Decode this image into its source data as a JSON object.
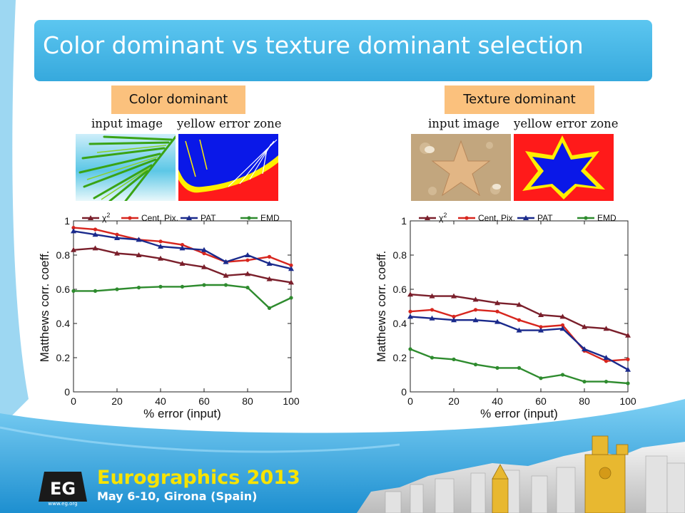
{
  "slide": {
    "title": "Color dominant vs texture dominant selection",
    "left_tag": "Color dominant",
    "right_tag": "Texture dominant",
    "caption_input": "input image",
    "caption_zone": "yellow error zone"
  },
  "footer": {
    "title": "Eurographics 2013",
    "date": "May 6-10, Girona (Spain)",
    "logo_text": "EG",
    "logo_url": "www.eg.org"
  },
  "colors": {
    "chi2": "#7a1f2b",
    "cent": "#d7261e",
    "pat": "#1a2a8c",
    "emd": "#2e8b2e",
    "title_bar": "#3fb2e3",
    "tag": "#fbc17d"
  },
  "chart_data": [
    {
      "type": "line",
      "xlabel": "% error (input)",
      "ylabel": "Matthews corr. coeff.",
      "xlim": [
        0,
        100
      ],
      "ylim": [
        0,
        1
      ],
      "xticks": [
        "0",
        "20",
        "40",
        "60",
        "80",
        "100"
      ],
      "yticks": [
        "0",
        "0.2",
        "0.4",
        "0.6",
        "0.8",
        "1"
      ],
      "legend": "top",
      "x": [
        0,
        10,
        20,
        30,
        40,
        50,
        60,
        70,
        80,
        90,
        100
      ],
      "series": [
        {
          "name": "χ",
          "sup": "2",
          "key": "chi2",
          "marker": "tri",
          "values": [
            0.83,
            0.84,
            0.81,
            0.8,
            0.78,
            0.75,
            0.73,
            0.68,
            0.69,
            0.66,
            0.64
          ]
        },
        {
          "name": "Cent. Pix.",
          "key": "cent",
          "marker": "dot",
          "values": [
            0.96,
            0.95,
            0.92,
            0.89,
            0.88,
            0.86,
            0.81,
            0.76,
            0.77,
            0.79,
            0.74
          ]
        },
        {
          "name": "PAT",
          "key": "pat",
          "marker": "tri",
          "values": [
            0.94,
            0.92,
            0.9,
            0.89,
            0.85,
            0.84,
            0.83,
            0.76,
            0.8,
            0.75,
            0.72
          ]
        },
        {
          "name": "EMD",
          "key": "emd",
          "marker": "dot",
          "values": [
            0.59,
            0.59,
            0.6,
            0.61,
            0.615,
            0.615,
            0.625,
            0.625,
            0.61,
            0.49,
            0.55
          ]
        }
      ]
    },
    {
      "type": "line",
      "xlabel": "% error (input)",
      "ylabel": "Matthews corr. coeff.",
      "xlim": [
        0,
        100
      ],
      "ylim": [
        0,
        1
      ],
      "xticks": [
        "0",
        "20",
        "40",
        "60",
        "80",
        "100"
      ],
      "yticks": [
        "0",
        "0.2",
        "0.4",
        "0.6",
        "0.8",
        "1"
      ],
      "legend": "top",
      "x": [
        0,
        10,
        20,
        30,
        40,
        50,
        60,
        70,
        80,
        90,
        100
      ],
      "series": [
        {
          "name": "χ",
          "sup": "2",
          "key": "chi2",
          "marker": "tri",
          "values": [
            0.57,
            0.56,
            0.56,
            0.54,
            0.52,
            0.51,
            0.45,
            0.44,
            0.38,
            0.37,
            0.33
          ]
        },
        {
          "name": "Cent. Pix.",
          "key": "cent",
          "marker": "dot",
          "values": [
            0.47,
            0.48,
            0.44,
            0.48,
            0.47,
            0.42,
            0.38,
            0.39,
            0.24,
            0.18,
            0.19
          ]
        },
        {
          "name": "PAT",
          "key": "pat",
          "marker": "tri",
          "values": [
            0.44,
            0.43,
            0.42,
            0.42,
            0.41,
            0.36,
            0.36,
            0.37,
            0.25,
            0.2,
            0.13
          ]
        },
        {
          "name": "EMD",
          "key": "emd",
          "marker": "dot",
          "values": [
            0.25,
            0.2,
            0.19,
            0.16,
            0.14,
            0.14,
            0.08,
            0.1,
            0.06,
            0.06,
            0.05
          ]
        }
      ]
    }
  ]
}
